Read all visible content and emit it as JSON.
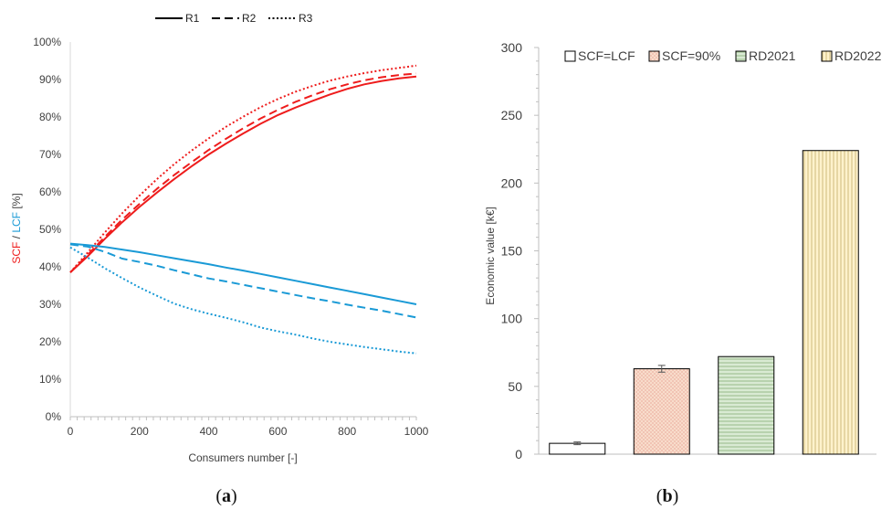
{
  "chart_data": [
    {
      "type": "line",
      "panel_label": {
        "open": "(",
        "letter": "a",
        "close": ")"
      },
      "xlabel": "Consumers number [-]",
      "ylabel_parts": {
        "scf": "SCF",
        "sep": " / ",
        "lcf": "LCF",
        "unit": " [%]"
      },
      "xlim": [
        0,
        1000
      ],
      "ylim": [
        0,
        100
      ],
      "x_ticks": [
        "0",
        "200",
        "400",
        "600",
        "800",
        "1000"
      ],
      "y_ticks": [
        "0%",
        "10%",
        "20%",
        "30%",
        "40%",
        "50%",
        "60%",
        "70%",
        "80%",
        "90%",
        "100%"
      ],
      "legend": {
        "placement": "top-center",
        "entries": [
          {
            "label": "R1",
            "style": "solid"
          },
          {
            "label": "R2",
            "style": "dashed"
          },
          {
            "label": "R3",
            "style": "dotted"
          }
        ]
      },
      "colors": {
        "scf": "#ee1c1c",
        "lcf": "#1a9ad6"
      },
      "x": [
        0,
        50,
        100,
        150,
        200,
        250,
        300,
        350,
        400,
        450,
        500,
        550,
        600,
        650,
        700,
        750,
        800,
        850,
        900,
        950,
        1000
      ],
      "series": [
        {
          "name": "R1",
          "metric": "SCF",
          "style": "solid",
          "values": [
            38.5,
            42.8,
            47.5,
            51.9,
            56.0,
            59.8,
            63.4,
            66.8,
            70.0,
            72.9,
            75.6,
            78.2,
            80.5,
            82.5,
            84.3,
            86.0,
            87.5,
            88.7,
            89.6,
            90.3,
            90.8
          ]
        },
        {
          "name": "R2",
          "metric": "SCF",
          "style": "dashed",
          "values": [
            38.5,
            43.2,
            48.0,
            52.6,
            56.8,
            60.8,
            64.5,
            67.9,
            71.2,
            74.2,
            77.0,
            79.6,
            81.9,
            84.0,
            85.8,
            87.4,
            88.7,
            89.8,
            90.6,
            91.2,
            91.6
          ]
        },
        {
          "name": "R3",
          "metric": "SCF",
          "style": "dotted",
          "values": [
            38.5,
            43.8,
            49.2,
            54.3,
            59.0,
            63.4,
            67.4,
            71.0,
            74.3,
            77.4,
            80.1,
            82.6,
            84.8,
            86.7,
            88.3,
            89.7,
            90.8,
            91.7,
            92.5,
            93.1,
            93.7
          ]
        },
        {
          "name": "R1",
          "metric": "LCF",
          "style": "solid",
          "values": [
            46.2,
            45.8,
            45.3,
            44.6,
            43.9,
            43.1,
            42.3,
            41.5,
            40.7,
            39.8,
            39.0,
            38.1,
            37.2,
            36.3,
            35.4,
            34.5,
            33.6,
            32.7,
            31.8,
            30.9,
            30.0
          ]
        },
        {
          "name": "R2",
          "metric": "LCF",
          "style": "dashed",
          "values": [
            46.0,
            45.4,
            44.0,
            42.2,
            41.3,
            40.3,
            39.1,
            38.0,
            36.9,
            36.1,
            35.2,
            34.3,
            33.4,
            32.5,
            31.6,
            30.8,
            29.9,
            29.1,
            28.3,
            27.4,
            26.5
          ]
        },
        {
          "name": "R3",
          "metric": "LCF",
          "style": "dotted",
          "values": [
            45.2,
            42.5,
            39.6,
            37.0,
            34.5,
            32.3,
            30.2,
            28.7,
            27.5,
            26.4,
            25.2,
            23.8,
            22.8,
            21.9,
            20.9,
            20.0,
            19.3,
            18.6,
            18.0,
            17.4,
            16.9
          ]
        }
      ]
    },
    {
      "type": "bar",
      "panel_label": {
        "open": "(",
        "letter": "b",
        "close": ")"
      },
      "ylabel": "Economic value [k€]",
      "ylim": [
        0,
        300
      ],
      "y_ticks": [
        "0",
        "50",
        "100",
        "150",
        "200",
        "250",
        "300"
      ],
      "categories": [
        "SCF=LCF",
        "SCF=90%",
        "RD2021",
        "RD2022"
      ],
      "values": [
        8,
        63,
        72,
        224
      ],
      "error_bars": [
        1,
        2.5,
        0,
        0
      ],
      "legend": {
        "placement": "top",
        "entries": [
          {
            "label": "SCF=LCF",
            "fill": "#ffffff",
            "pattern": "none"
          },
          {
            "label": "SCF=90%",
            "fill": "#f8dccb",
            "pattern": "dots"
          },
          {
            "label": "RD2021",
            "fill": "#d9ead3",
            "pattern": "hlines"
          },
          {
            "label": "RD2022",
            "fill": "#fff2cc",
            "pattern": "vlines"
          }
        ]
      }
    }
  ]
}
